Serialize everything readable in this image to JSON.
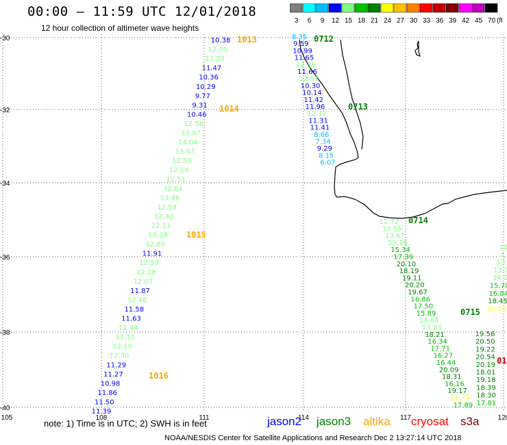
{
  "header": {
    "title": "00:00 – 11:59 UTC 12/01/2018",
    "subtitle": "12 hour collection of altimeter wave heights"
  },
  "legend": {
    "unit": "(ft)",
    "items": [
      {
        "label": "3",
        "color": "#7f7f7f"
      },
      {
        "label": "6",
        "color": "#00ffff"
      },
      {
        "label": "9",
        "color": "#00bfff"
      },
      {
        "label": "12",
        "color": "#0000ff"
      },
      {
        "label": "15",
        "color": "#7fff7f"
      },
      {
        "label": "18",
        "color": "#00c000"
      },
      {
        "label": "21",
        "color": "#008000"
      },
      {
        "label": "24",
        "color": "#ffff00"
      },
      {
        "label": "27",
        "color": "#ffc000"
      },
      {
        "label": "30",
        "color": "#ff8000"
      },
      {
        "label": "33",
        "color": "#ff0000"
      },
      {
        "label": "36",
        "color": "#c00000"
      },
      {
        "label": "39",
        "color": "#800000"
      },
      {
        "label": "42",
        "color": "#ff00ff"
      },
      {
        "label": "45",
        "color": "#c000c0"
      },
      {
        "label": "70",
        "color": "#000000"
      }
    ]
  },
  "axes": {
    "lon_labels": [
      "105",
      "108",
      "111",
      "114",
      "117",
      "120"
    ],
    "lat_labels": [
      "-30",
      "-32",
      "-34",
      "-36",
      "-38",
      "-40"
    ]
  },
  "tracks": [
    {
      "points": [
        {
          "v": "10.38",
          "c": "#0000ff"
        },
        {
          "v": "12.05",
          "c": "#7fff7f"
        },
        {
          "v": "12.20",
          "c": "#7fff7f"
        },
        {
          "v": "11.47",
          "c": "#0000ff"
        },
        {
          "v": "10.36",
          "c": "#0000ff"
        },
        {
          "v": "10.29",
          "c": "#0000ff"
        },
        {
          "v": "9.77",
          "c": "#0000ff"
        },
        {
          "v": "9.31",
          "c": "#0000ff"
        },
        {
          "v": "10.46",
          "c": "#0000ff"
        },
        {
          "v": "12.58",
          "c": "#7fff7f"
        },
        {
          "v": "12.97",
          "c": "#7fff7f"
        },
        {
          "v": "14.04",
          "c": "#7fff7f"
        },
        {
          "v": "13.67",
          "c": "#7fff7f"
        },
        {
          "v": "12.53",
          "c": "#7fff7f"
        },
        {
          "v": "12.14",
          "c": "#7fff7f"
        },
        {
          "v": "12.51",
          "c": "#7fff7f"
        },
        {
          "v": "12.84",
          "c": "#7fff7f"
        },
        {
          "v": "13.46",
          "c": "#7fff7f"
        },
        {
          "v": "12.58",
          "c": "#7fff7f"
        },
        {
          "v": "12.40",
          "c": "#7fff7f"
        },
        {
          "v": "12.11",
          "c": "#7fff7f"
        },
        {
          "v": "13.28",
          "c": "#7fff7f"
        },
        {
          "v": "12.89",
          "c": "#7fff7f"
        },
        {
          "v": "11.91",
          "c": "#0000ff"
        },
        {
          "v": "12.53",
          "c": "#7fff7f"
        },
        {
          "v": "12.28",
          "c": "#7fff7f"
        },
        {
          "v": "12.07",
          "c": "#7fff7f"
        },
        {
          "v": "11.87",
          "c": "#0000ff"
        },
        {
          "v": "12.46",
          "c": "#7fff7f"
        },
        {
          "v": "11.58",
          "c": "#0000ff"
        },
        {
          "v": "11.63",
          "c": "#0000ff"
        },
        {
          "v": "12.44",
          "c": "#7fff7f"
        },
        {
          "v": "12.11",
          "c": "#7fff7f"
        },
        {
          "v": "12.19",
          "c": "#7fff7f"
        },
        {
          "v": "12.30",
          "c": "#7fff7f"
        },
        {
          "v": "11.29",
          "c": "#0000ff"
        },
        {
          "v": "11.27",
          "c": "#0000ff"
        },
        {
          "v": "10.98",
          "c": "#0000ff"
        },
        {
          "v": "11.86",
          "c": "#0000ff"
        },
        {
          "v": "11.50",
          "c": "#0000ff"
        },
        {
          "v": "11.39",
          "c": "#0000ff"
        }
      ]
    },
    {
      "points": [
        {
          "v": "8.35",
          "c": "#00bfff"
        },
        {
          "v": "9.59",
          "c": "#0000ff"
        },
        {
          "v": "10.99",
          "c": "#0000ff"
        },
        {
          "v": "11.65",
          "c": "#0000ff"
        },
        {
          "v": "12.36",
          "c": "#7fff7f"
        },
        {
          "v": "11.66",
          "c": "#0000ff"
        },
        {
          "v": "12.07",
          "c": "#7fff7f"
        },
        {
          "v": "10.30",
          "c": "#0000ff"
        },
        {
          "v": "10.14",
          "c": "#0000ff"
        },
        {
          "v": "11.42",
          "c": "#0000ff"
        },
        {
          "v": "11.96",
          "c": "#0000ff"
        },
        {
          "v": "12.37",
          "c": "#7fff7f"
        },
        {
          "v": "11.31",
          "c": "#0000ff"
        },
        {
          "v": "11.41",
          "c": "#0000ff"
        },
        {
          "v": "8.66",
          "c": "#00bfff"
        },
        {
          "v": "7.34",
          "c": "#00bfff"
        },
        {
          "v": "9.29",
          "c": "#0000ff"
        },
        {
          "v": "8.15",
          "c": "#00bfff"
        },
        {
          "v": "6.07",
          "c": "#00bfff"
        }
      ]
    },
    {
      "points": [
        {
          "v": "12.72",
          "c": "#7fff7f"
        },
        {
          "v": "12.55",
          "c": "#7fff7f"
        },
        {
          "v": "13.67",
          "c": "#7fff7f"
        },
        {
          "v": "13.16",
          "c": "#7fff7f"
        },
        {
          "v": "15.34",
          "c": "#00c000"
        },
        {
          "v": "17.39",
          "c": "#00c000"
        },
        {
          "v": "20.10",
          "c": "#008000"
        },
        {
          "v": "18.19",
          "c": "#008000"
        },
        {
          "v": "19.11",
          "c": "#008000"
        },
        {
          "v": "20.20",
          "c": "#008000"
        },
        {
          "v": "19.67",
          "c": "#008000"
        },
        {
          "v": "16.86",
          "c": "#00c000"
        },
        {
          "v": "17.50",
          "c": "#00c000"
        },
        {
          "v": "15.89",
          "c": "#00c000"
        },
        {
          "v": "14.64",
          "c": "#7fff7f"
        },
        {
          "v": "13.83",
          "c": "#7fff7f"
        },
        {
          "v": "18.21",
          "c": "#008000"
        },
        {
          "v": "16.34",
          "c": "#00c000"
        },
        {
          "v": "17.71",
          "c": "#00c000"
        },
        {
          "v": "16.27",
          "c": "#00c000"
        },
        {
          "v": "16.44",
          "c": "#00c000"
        },
        {
          "v": "20.09",
          "c": "#008000"
        },
        {
          "v": "18.31",
          "c": "#008000"
        },
        {
          "v": "16.16",
          "c": "#00c000"
        },
        {
          "v": "19.17",
          "c": "#008000"
        },
        {
          "v": "21.19",
          "c": "#ffff00"
        },
        {
          "v": "17.89",
          "c": "#00c000"
        }
      ]
    },
    {
      "points": [
        {
          "v": "19.56",
          "c": "#008000"
        },
        {
          "v": "20.50",
          "c": "#008000"
        },
        {
          "v": "19.22",
          "c": "#008000"
        },
        {
          "v": "20.54",
          "c": "#008000"
        },
        {
          "v": "20.19",
          "c": "#008000"
        },
        {
          "v": "18.01",
          "c": "#008000"
        },
        {
          "v": "19.18",
          "c": "#008000"
        },
        {
          "v": "18.39",
          "c": "#008000"
        },
        {
          "v": "18.30",
          "c": "#008000"
        },
        {
          "v": "17.81",
          "c": "#00c000"
        }
      ]
    },
    {
      "points": [
        {
          "v": "13",
          "c": "#7fff7f"
        },
        {
          "v": "1",
          "c": "#7fff7f"
        },
        {
          "v": "13.",
          "c": "#7fff7f"
        },
        {
          "v": "13.7",
          "c": "#7fff7f"
        },
        {
          "v": "14.2",
          "c": "#7fff7f"
        },
        {
          "v": "15.70",
          "c": "#00c000"
        },
        {
          "v": "16.84",
          "c": "#00c000"
        },
        {
          "v": "18.45",
          "c": "#008000"
        },
        {
          "v": "21.02",
          "c": "#ffff00"
        }
      ]
    }
  ],
  "time_labels": [
    {
      "text": "1013",
      "color": "#ffa500"
    },
    {
      "text": "1014",
      "color": "#ffa500"
    },
    {
      "text": "1015",
      "color": "#ffa500"
    },
    {
      "text": "1016",
      "color": "#ffa500"
    },
    {
      "text": "0712",
      "color": "#008000"
    },
    {
      "text": "0713",
      "color": "#008000"
    },
    {
      "text": "0714",
      "color": "#008000"
    },
    {
      "text": "0715",
      "color": "#008000"
    },
    {
      "text": "01",
      "color": "#c00000"
    }
  ],
  "footer": {
    "note": "note: 1) Time is in UTC; 2) SWH is in feet",
    "satellites": [
      {
        "name": "jason2",
        "color": "#0000ff"
      },
      {
        "name": "jason3",
        "color": "#008000"
      },
      {
        "name": "altika",
        "color": "#ffa500"
      },
      {
        "name": "cryosat",
        "color": "#ff0000"
      },
      {
        "name": "s3a",
        "color": "#800000"
      }
    ],
    "credit": "NOAA/NESDIS Center for Satellite Applications and Research    Dec  2 13:27:14 UTC 2018"
  }
}
